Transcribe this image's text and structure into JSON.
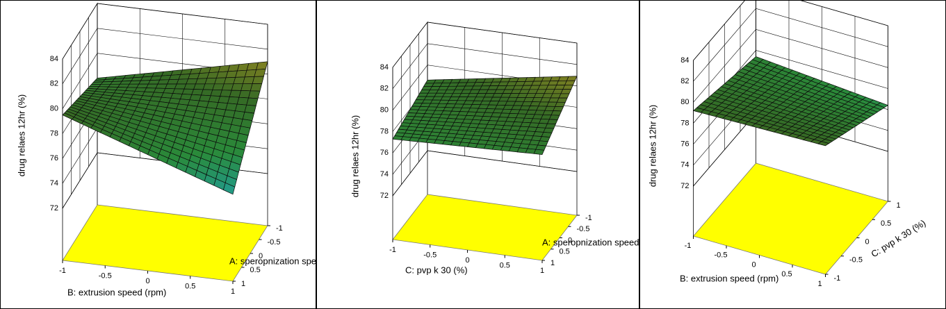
{
  "chart_data": [
    {
      "type": "surface",
      "zlabel": "drug relaes 12hr (%)",
      "xlabel": "B: extrusion speed (rpm)",
      "ylabel": "A: speropnization speed",
      "xlim": [
        -1,
        1
      ],
      "ylim": [
        -1,
        1
      ],
      "zlim": [
        72,
        84
      ],
      "xticks": [
        -1,
        -0.5,
        0,
        0.5,
        1
      ],
      "yticks": [
        -1,
        -0.5,
        0,
        0.5,
        1
      ],
      "zticks": [
        72,
        74,
        76,
        78,
        80,
        82,
        84
      ],
      "x": [
        -1,
        1
      ],
      "y": [
        -1,
        1
      ],
      "z": [
        [
          78,
          81
        ],
        [
          79.5,
          74.8
        ]
      ]
    },
    {
      "type": "surface",
      "zlabel": "drug relaes 12hr (%)",
      "xlabel": "C: pvp k 30 (%)",
      "ylabel": "A: speropnization speed",
      "xlim": [
        -1,
        1
      ],
      "ylim": [
        -1,
        1
      ],
      "zlim": [
        72,
        84
      ],
      "xticks": [
        -1,
        -0.5,
        0,
        0.5,
        1
      ],
      "yticks": [
        -1,
        -0.5,
        0,
        0.5,
        1
      ],
      "zticks": [
        72,
        74,
        76,
        78,
        80,
        82,
        84
      ],
      "x": [
        -1,
        1
      ],
      "y": [
        -1,
        1
      ],
      "z": [
        [
          78.6,
          80.9
        ],
        [
          77.3,
          77.8
        ]
      ]
    },
    {
      "type": "surface",
      "zlabel": "drug relaes 12hr (%)",
      "xlabel": "B: extrusion speed (rpm)",
      "ylabel": "C: pvp k 30 (%)",
      "xlim": [
        -1,
        1
      ],
      "ylim": [
        -1,
        1
      ],
      "zlim": [
        72,
        84
      ],
      "xticks": [
        -1,
        -0.5,
        0,
        0.5,
        1
      ],
      "yticks": [
        -1,
        -0.5,
        0,
        0.5,
        1
      ],
      "zticks": [
        72,
        74,
        76,
        78,
        80,
        82,
        84
      ],
      "x": [
        -1,
        1
      ],
      "y": [
        -1,
        1
      ],
      "z": [
        [
          79.2,
          79.5
        ],
        [
          77.4,
          76.4
        ]
      ]
    }
  ]
}
